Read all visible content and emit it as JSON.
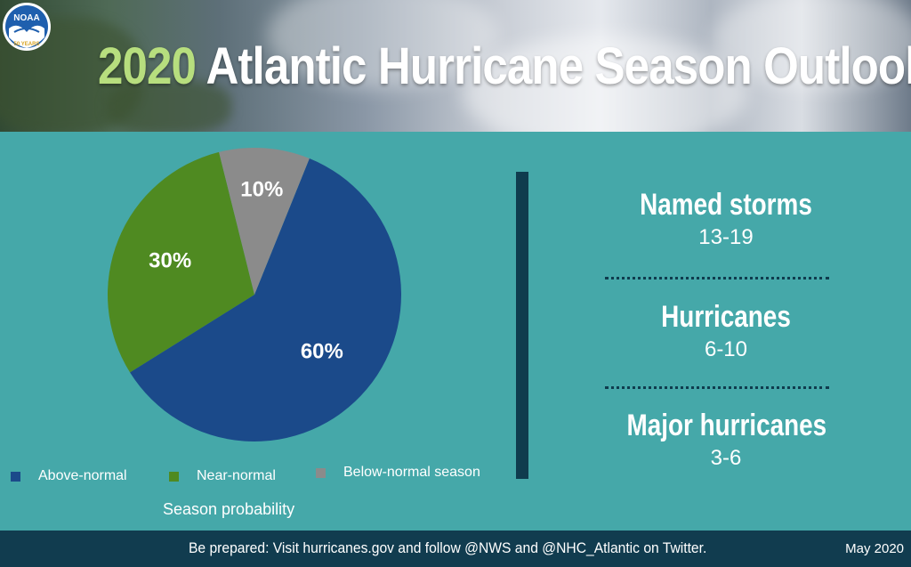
{
  "header": {
    "title_year": "2020",
    "title_rest": "Atlantic Hurricane Season Outlook",
    "logo": {
      "icon": "noaa-logo-icon",
      "text": "NOAA",
      "badge": "50 YEARS"
    }
  },
  "chart_data": {
    "type": "pie",
    "title": "",
    "xlabel": "Season probability",
    "categories": [
      "Above-normal",
      "Near-normal",
      "Below-normal season"
    ],
    "values": [
      60,
      30,
      10
    ],
    "labels": [
      "60%",
      "30%",
      "10%"
    ],
    "colors": [
      "#1b4a8a",
      "#4f8a21",
      "#8b8b8b"
    ],
    "legend_position": "bottom"
  },
  "stats": [
    {
      "label": "Named storms",
      "value": "13-19"
    },
    {
      "label": "Hurricanes",
      "value": "6-10"
    },
    {
      "label": "Major hurricanes",
      "value": "3-6"
    }
  ],
  "footer": {
    "text": "Be prepared: Visit hurricanes.gov and follow @NWS and @NHC_Atlantic on Twitter.",
    "date": "May 2020"
  },
  "colors": {
    "background": "#45a8a9",
    "footer": "#113c4f",
    "divider": "#0f3c4e",
    "year_accent": "#b7de7e"
  }
}
